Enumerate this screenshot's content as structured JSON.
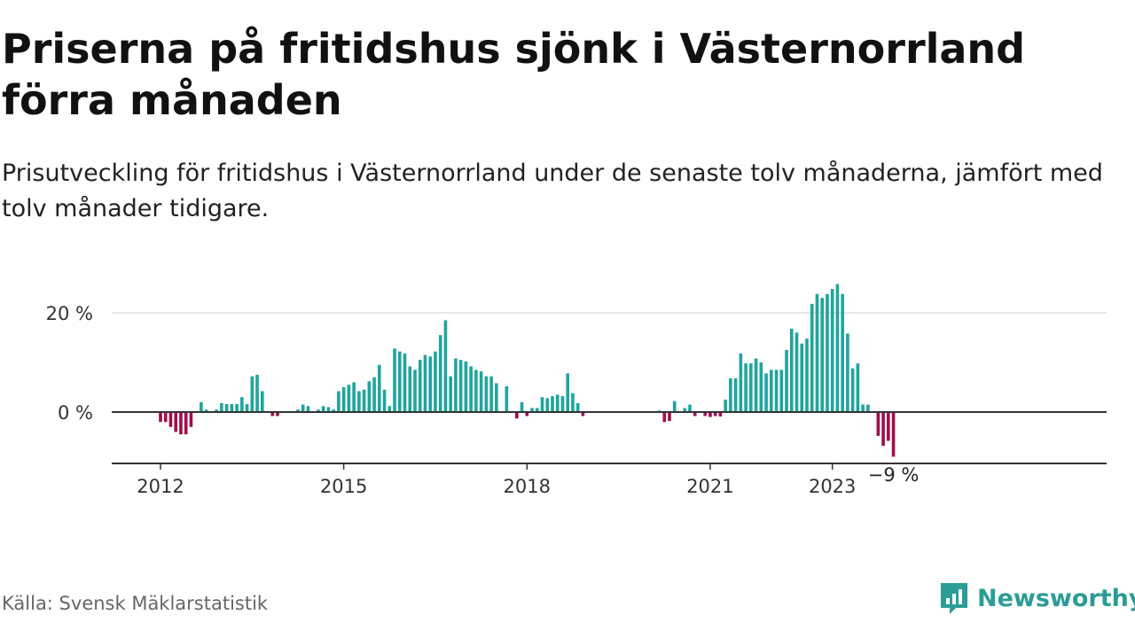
{
  "header": {
    "title": "Priserna på fritidshus sjönk i Västernorrland förra månaden",
    "subtitle": "Prisutveckling för fritidshus i Västernorrland under de senaste tolv månaderna, jämfört med tolv månader tidigare."
  },
  "footer": {
    "source": "Källa: Svensk Mäklarstatistik",
    "brand": "Newsworthy"
  },
  "colors": {
    "positive": "#1fa59d",
    "negative": "#a10d49",
    "axis": "#333333",
    "grid": "#dddddd"
  },
  "chart_data": {
    "type": "bar",
    "start": "2012-01",
    "unit": "%",
    "ylim": [
      -10,
      25
    ],
    "y_ticks": [
      0,
      20
    ],
    "y_tick_labels": [
      "0 %",
      "20 %"
    ],
    "x_ticks": [
      "2012",
      "2015",
      "2018",
      "2021",
      "2023"
    ],
    "grid": true,
    "last_value_label": "−9 %",
    "values": [
      -2,
      -2,
      -3,
      -4,
      -4.5,
      -4.5,
      -3,
      0,
      2,
      0.5,
      0,
      0.5,
      1.8,
      1.6,
      1.6,
      1.6,
      3,
      1.6,
      7.2,
      7.5,
      4.2,
      0,
      -0.8,
      -0.8,
      0,
      0,
      0,
      0.5,
      1.5,
      1.2,
      0,
      0.5,
      1.2,
      1,
      0.5,
      4.2,
      5,
      5.5,
      6,
      4.2,
      4.5,
      6.2,
      7,
      9.5,
      4.5,
      1.2,
      12.8,
      12.2,
      11.8,
      9.2,
      8.5,
      10.5,
      11.5,
      11.2,
      12.2,
      15.5,
      18.5,
      7.2,
      10.8,
      10.5,
      10.2,
      9.2,
      8.5,
      8.2,
      7.2,
      7.2,
      5.8,
      0,
      5.2,
      0,
      -1.3,
      2,
      -0.8,
      0.8,
      0.8,
      3,
      2.8,
      3.2,
      3.5,
      3.2,
      7.8,
      3.8,
      1.8,
      -0.8,
      0,
      0,
      0,
      0,
      0,
      0,
      0,
      0,
      0,
      0,
      0,
      0,
      0,
      0,
      0.3,
      -2,
      -1.8,
      2.2,
      0,
      0.8,
      1.5,
      -0.8,
      0,
      -0.8,
      -1,
      -0.8,
      -0.9,
      2.5,
      6.8,
      6.8,
      11.8,
      9.8,
      9.8,
      10.8,
      10,
      7.8,
      8.5,
      8.5,
      8.5,
      12.5,
      16.8,
      16,
      13.8,
      14.8,
      21.8,
      23.8,
      23,
      23.8,
      24.8,
      25.8,
      23.8,
      15.8,
      8.8,
      9.8,
      1.5,
      1.5,
      0,
      -4.8,
      -6.8,
      -5.8,
      -9
    ]
  }
}
